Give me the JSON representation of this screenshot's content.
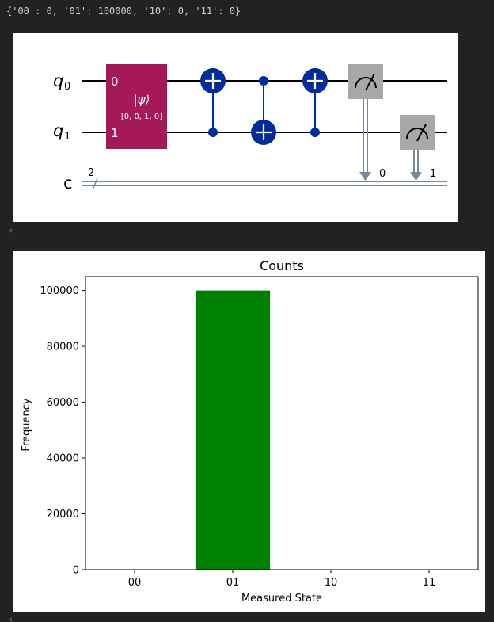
{
  "output_text": "{'00': 0, '01': 100000, '10': 0, '11': 0}",
  "circuit": {
    "qubit_labels": [
      "q",
      "q"
    ],
    "qubit_indices": [
      "0",
      "1"
    ],
    "classical_label": "c",
    "classical_width": "2",
    "init_gate": {
      "symbol": "|ψ⟩",
      "params": "[0, 0, 1, 0]",
      "port_labels": [
        "0",
        "1"
      ],
      "color": "#a5185a"
    },
    "measure_bits": [
      "0",
      "1"
    ],
    "gate_color": "#002d9c",
    "measure_color": "#a8a8a8",
    "wire_color": "#778899"
  },
  "chart_data": {
    "type": "bar",
    "title": "Counts",
    "xlabel": "Measured State",
    "ylabel": "Frequency",
    "categories": [
      "00",
      "01",
      "10",
      "11"
    ],
    "values": [
      0,
      100000,
      0,
      0
    ],
    "ylim": [
      0,
      105000
    ],
    "yticks": [
      0,
      20000,
      40000,
      60000,
      80000,
      100000
    ],
    "bar_color": "#008000",
    "grid": false
  }
}
